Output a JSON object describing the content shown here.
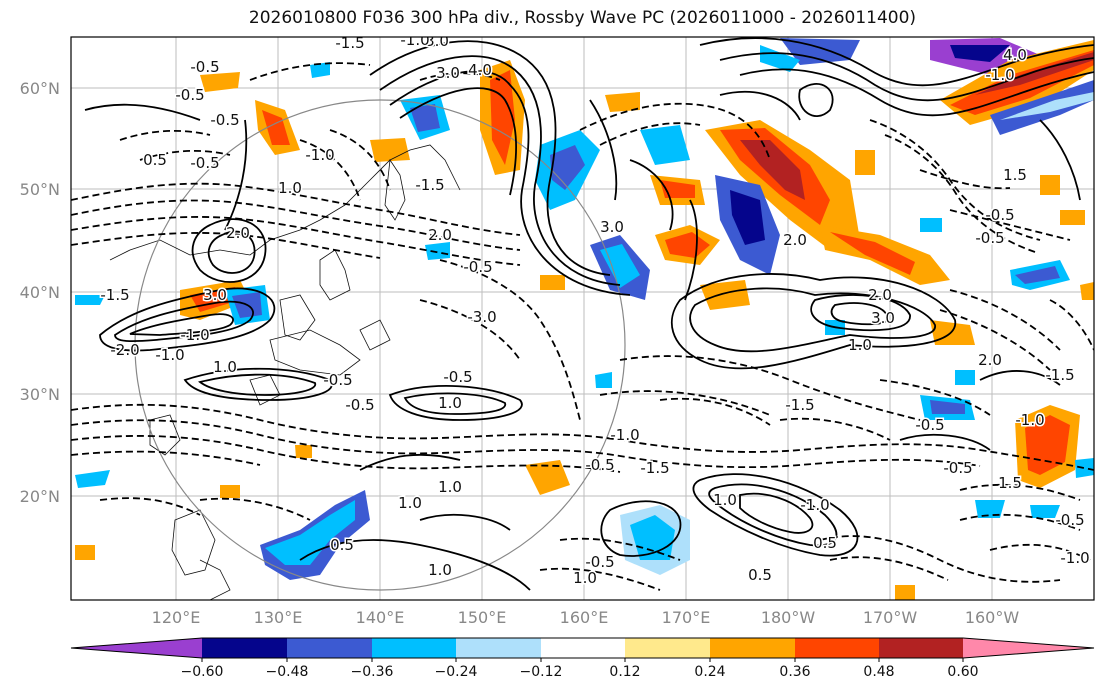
{
  "title": "2026010800 F036 300 hPa div., Rossby Wave PC (2026011000 - 2026011400)",
  "map": {
    "lat_ticks": [
      "60°N",
      "50°N",
      "40°N",
      "30°N",
      "20°N"
    ],
    "lon_ticks": [
      "120°E",
      "130°E",
      "140°E",
      "150°E",
      "160°E",
      "170°E",
      "180°W",
      "170°W",
      "160°W"
    ]
  },
  "colorbar": {
    "ticks": [
      "−0.60",
      "−0.48",
      "−0.36",
      "−0.24",
      "−0.12",
      "0.12",
      "0.24",
      "0.36",
      "0.48",
      "0.60"
    ],
    "colors": [
      "#9a3fd0",
      "#05058c",
      "#3c5ad2",
      "#00bfff",
      "#aee0fb",
      "#ffffff",
      "#ffe98c",
      "#ffa500",
      "#ff4500",
      "#b22222",
      "#ff88aa"
    ]
  },
  "contour_labels": [
    "-1.5",
    "3.0",
    "4.0",
    "3.0",
    "-1.0",
    "-0.5",
    "-0.5",
    "0.5",
    "-0.5",
    "-0.5",
    "-1.0",
    "1.0",
    "-1.5",
    "2.0",
    "3.0",
    "2.0",
    "-0.5",
    "-3.0",
    "-1.0",
    "-1.0",
    "3.0",
    "-2.0",
    "1.0",
    "-1.5",
    "-0.5",
    "-0.5",
    "-1.0",
    "1.0",
    "-0.5",
    "1.0",
    "-0.5",
    "-1.5",
    "1.0",
    "-0.5",
    "-0.5",
    "-1.0",
    "1.5",
    "2.0",
    "3.0",
    "-1.5",
    "2.0",
    "-0.5",
    "-0.5",
    "0.5",
    "1.0",
    "-1.0",
    "1.0",
    "1.0",
    "-1.0",
    "0.5",
    "-0.5",
    "1.5",
    "-0.5",
    "-1.0",
    "4.0",
    "2.0",
    "1.0",
    "0.5",
    "-1.5"
  ]
}
